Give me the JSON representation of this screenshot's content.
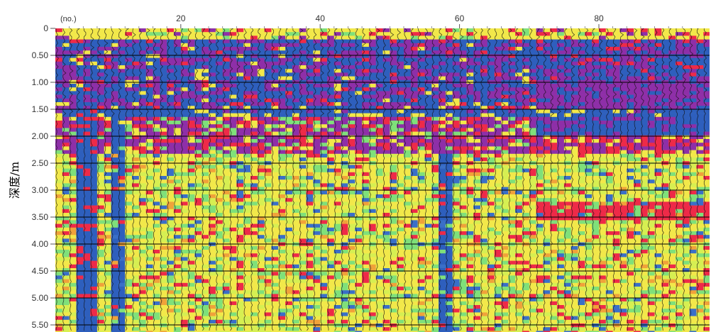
{
  "chart_data": {
    "type": "heatmap",
    "title": "",
    "xlabel": "",
    "ylabel": "深度/m",
    "x_unit_label": "(no.)",
    "x_range": [
      0,
      94
    ],
    "x_ticks": [
      20,
      40,
      60,
      80
    ],
    "y_range": [
      0,
      5.7
    ],
    "y_ticks": [
      0,
      0.5,
      1.0,
      1.5,
      2.0,
      2.5,
      3.0,
      3.5,
      4.0,
      4.5,
      5.0,
      5.5
    ],
    "y_tick_labels": [
      "0",
      "0.50",
      "1.00",
      "1.50",
      "2.00",
      "2.50",
      "3.00",
      "3.50",
      "4.00",
      "4.50",
      "5.00",
      "5.50"
    ],
    "y_inverted": true,
    "grid": "horizontal",
    "legend": "none",
    "color_scale": [
      "#f2e84a",
      "#d6ef52",
      "#7fe07a",
      "#3a73c9",
      "#ee2a48",
      "#8e2fa8",
      "#3266c2"
    ],
    "bands": [
      {
        "depth": [
          0.0,
          0.15
        ],
        "value": "surface-yellow"
      },
      {
        "depth": [
          0.15,
          1.45
        ],
        "value": "blue-purple"
      },
      {
        "depth": [
          1.45,
          1.6
        ],
        "value": "blue"
      },
      {
        "depth": [
          1.6,
          2.3
        ],
        "value": "purple-red"
      },
      {
        "depth": [
          2.3,
          5.7
        ],
        "value": "yellow-green-red"
      }
    ]
  }
}
